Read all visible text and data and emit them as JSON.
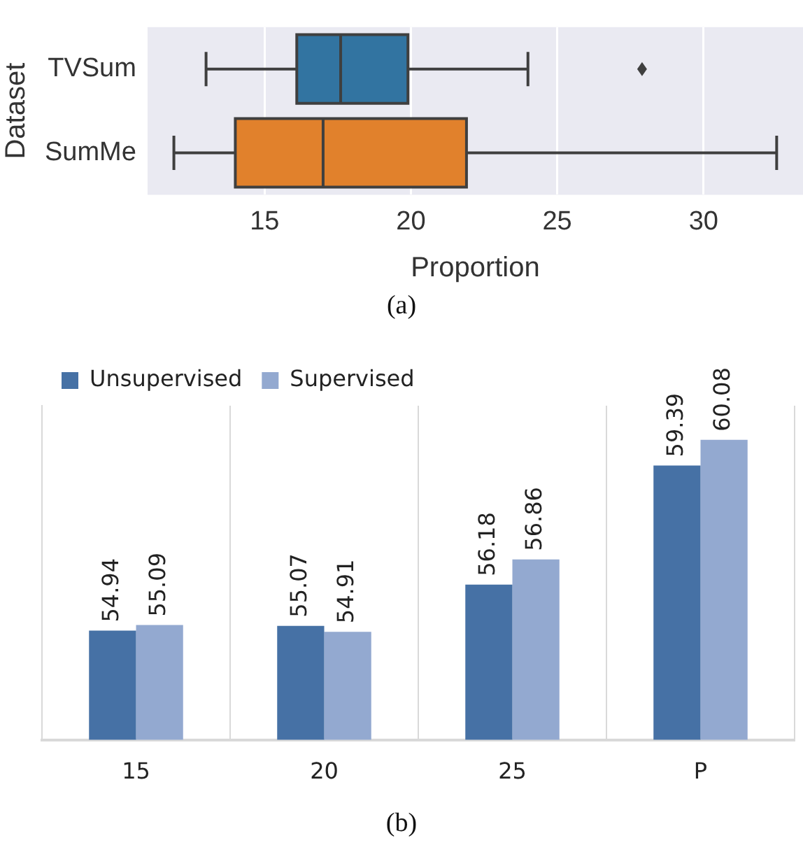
{
  "chart_data": [
    {
      "type": "box",
      "orientation": "horizontal",
      "xlabel": "Proportion",
      "ylabel": "Dataset",
      "categories": [
        "TVSum",
        "SumMe"
      ],
      "colors": [
        "#3274a1",
        "#e1812c"
      ],
      "boxes": [
        {
          "low": 13.0,
          "q1": 16.1,
          "median": 17.6,
          "q3": 19.9,
          "high": 24.0,
          "outliers": [
            27.9
          ]
        },
        {
          "low": 11.9,
          "q1": 14.0,
          "median": 17.0,
          "q3": 21.9,
          "high": 32.5
        }
      ],
      "xlim": [
        11,
        33.4
      ],
      "xticks": [
        15,
        20,
        25,
        30
      ],
      "grid": "x",
      "annotations": [
        "(a)"
      ]
    },
    {
      "type": "bar",
      "categories": [
        "15",
        "20",
        "25",
        "P"
      ],
      "series": [
        {
          "name": "Unsupervised",
          "color": "#4671a5",
          "values": [
            54.94,
            55.07,
            56.18,
            59.39
          ]
        },
        {
          "name": "Supervised",
          "color": "#93a9d0",
          "values": [
            55.09,
            54.91,
            56.86,
            60.08
          ]
        }
      ],
      "ylim": [
        52,
        61
      ],
      "tick_labels": "x",
      "grid": "x",
      "legend": "top left",
      "data_labels": true,
      "annotations": [
        "(b)"
      ]
    }
  ]
}
